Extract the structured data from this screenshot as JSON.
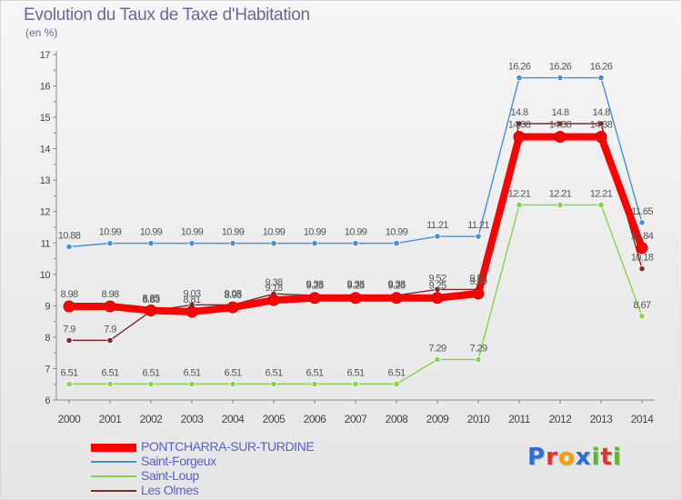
{
  "title": "Evolution du Taux de Taxe d'Habitation",
  "subtitle": "(en %)",
  "chart_data": {
    "type": "line",
    "title": "Evolution du Taux de Taxe d'Habitation",
    "ylabel": "(en %)",
    "xlabel": "",
    "x": [
      "2000",
      "2001",
      "2002",
      "2003",
      "2004",
      "2005",
      "2006",
      "2007",
      "2008",
      "2009",
      "2010",
      "2011",
      "2012",
      "2013",
      "2014"
    ],
    "ylim": [
      6,
      17
    ],
    "yticks": [
      "6",
      "7",
      "8",
      "9",
      "10",
      "11",
      "12",
      "13",
      "14",
      "15",
      "16",
      "17"
    ],
    "grid": false,
    "legend_position": "bottom-left",
    "series": [
      {
        "name": "PONTCHARRA-SUR-TURDINE",
        "color": "#ff0000",
        "values": [
          8.98,
          8.98,
          8.85,
          8.81,
          8.95,
          9.18,
          9.25,
          9.25,
          9.25,
          9.25,
          9.39,
          14.38,
          14.38,
          14.38,
          10.84
        ],
        "labels": [
          "8.98",
          "8.98",
          "8.85",
          "8.81",
          "8.95",
          "9.18",
          "9.25",
          "9.25",
          "9.25",
          "9.25",
          "9.39",
          "14.38",
          "14.38",
          "14.38",
          "10.84"
        ]
      },
      {
        "name": "Saint-Forgeux",
        "color": "#4a8fd0",
        "values": [
          10.88,
          10.99,
          10.99,
          10.99,
          10.99,
          10.99,
          10.99,
          10.99,
          10.99,
          11.21,
          11.21,
          16.26,
          16.26,
          16.26,
          11.65
        ],
        "labels": [
          "10.88",
          "10.99",
          "10.99",
          "10.99",
          "10.99",
          "10.99",
          "10.99",
          "10.99",
          "10.99",
          "11.21",
          "11.21",
          "16.26",
          "16.26",
          "16.26",
          "11.65"
        ]
      },
      {
        "name": "Saint-Loup",
        "color": "#88d050",
        "values": [
          6.51,
          6.51,
          6.51,
          6.51,
          6.51,
          6.51,
          6.51,
          6.51,
          6.51,
          7.29,
          7.29,
          12.21,
          12.21,
          12.21,
          8.67
        ],
        "labels": [
          "6.51",
          "6.51",
          "6.51",
          "6.51",
          "6.51",
          "6.51",
          "6.51",
          "6.51",
          "6.51",
          "7.29",
          "7.29",
          "12.21",
          "12.21",
          "12.21",
          "8.67"
        ]
      },
      {
        "name": "Les Olmes",
        "color": "#7a2a2a",
        "values": [
          7.9,
          7.9,
          8.83,
          9.03,
          9.03,
          9.38,
          9.33,
          9.33,
          9.33,
          9.52,
          9.52,
          14.8,
          14.8,
          14.8,
          10.18
        ],
        "labels": [
          "7.9",
          "7.9",
          "8.83",
          "9.03",
          "9.03",
          "9.38",
          "9.33",
          "9.33",
          "9.33",
          "9.52",
          "9.52",
          "14.8",
          "14.8",
          "14.8",
          "10.18"
        ]
      }
    ]
  },
  "legend": [
    {
      "label": "PONTCHARRA-SUR-TURDINE",
      "color": "#ff0000",
      "weight": "thick"
    },
    {
      "label": "Saint-Forgeux",
      "color": "#4a8fd0",
      "weight": "thin"
    },
    {
      "label": "Saint-Loup",
      "color": "#88d050",
      "weight": "thin"
    },
    {
      "label": "Les Olmes",
      "color": "#7a2a2a",
      "weight": "thin"
    }
  ],
  "logo": {
    "letters": [
      "P",
      "r",
      "o",
      "x",
      "i",
      "t",
      "i"
    ],
    "colors": [
      "#2a6fd6",
      "#e0342a",
      "#f0a000",
      "#2a6fd6",
      "#5cb82a",
      "#e0342a",
      "#5cb82a"
    ]
  }
}
